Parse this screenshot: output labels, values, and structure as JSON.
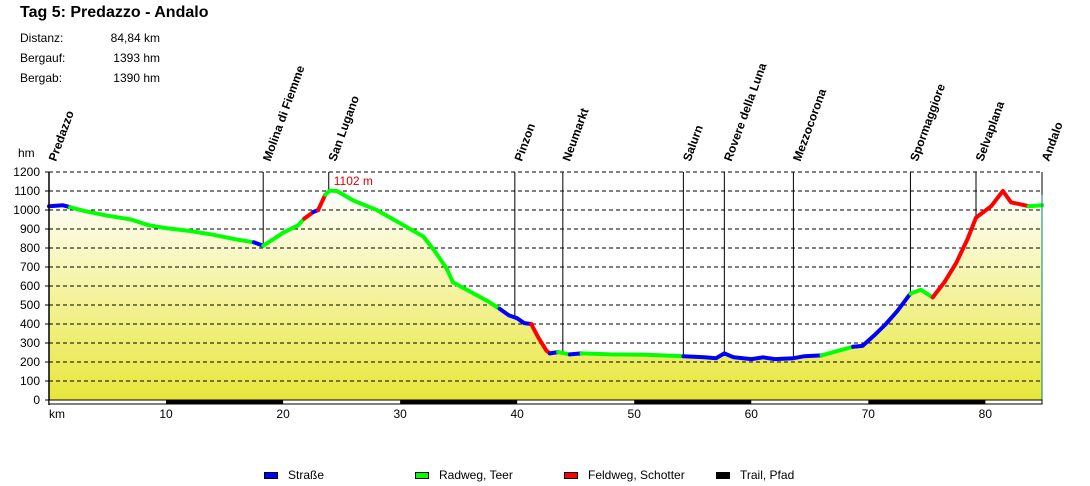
{
  "header": {
    "title": "Tag 5: Predazzo - Andalo",
    "stats": [
      {
        "label": "Distanz:",
        "value": "84,84 km"
      },
      {
        "label": "Bergauf:",
        "value": "1393 hm"
      },
      {
        "label": "Bergab:",
        "value": "1390 hm"
      }
    ]
  },
  "legend": [
    {
      "label": "Straße",
      "color": "#0000ff"
    },
    {
      "label": "Radweg, Teer",
      "color": "#00ff00"
    },
    {
      "label": "Feldweg, Schotter",
      "color": "#ff0000"
    },
    {
      "label": "Trail, Pfad",
      "color": "#000000"
    }
  ],
  "chart_data": {
    "type": "area",
    "title": "Tag 5: Predazzo - Andalo",
    "xlabel": "km",
    "ylabel": "hm",
    "xlim": [
      0,
      84.84
    ],
    "ylim": [
      0,
      1200
    ],
    "x_ticks": [
      10,
      20,
      30,
      40,
      50,
      60,
      70,
      80
    ],
    "y_ticks": [
      0,
      100,
      200,
      300,
      400,
      500,
      600,
      700,
      800,
      900,
      1000,
      1100,
      1200
    ],
    "grid": "horizontal dashed",
    "max_annotation": {
      "label": "1102 m",
      "km": 23.9,
      "hm": 1102
    },
    "waypoints": [
      {
        "name": "Predazzo",
        "km": 0
      },
      {
        "name": "Molina di Fiemme",
        "km": 18.3
      },
      {
        "name": "San Lugano",
        "km": 23.9
      },
      {
        "name": "Pinzon",
        "km": 39.8
      },
      {
        "name": "Neumarkt",
        "km": 43.9
      },
      {
        "name": "Salurn",
        "km": 54.2
      },
      {
        "name": "Rovere della Luna",
        "km": 57.7
      },
      {
        "name": "Mezzocorona",
        "km": 63.6
      },
      {
        "name": "Spormaggiore",
        "km": 73.6
      },
      {
        "name": "Selvaplana",
        "km": 79.2
      },
      {
        "name": "Andalo",
        "km": 84.84
      }
    ],
    "series": [
      {
        "name": "Straße",
        "color": "#0000ff",
        "points": [
          [
            0,
            1020
          ],
          [
            1.2,
            1025
          ],
          [
            1.8,
            1015
          ]
        ]
      },
      {
        "name": "Radweg, Teer",
        "color": "#00ff00",
        "points": [
          [
            1.8,
            1015
          ],
          [
            3,
            995
          ],
          [
            5,
            970
          ],
          [
            7,
            950
          ],
          [
            8.5,
            920
          ],
          [
            10,
            905
          ],
          [
            12,
            890
          ],
          [
            14,
            870
          ],
          [
            16,
            845
          ],
          [
            17.5,
            830
          ]
        ]
      },
      {
        "name": "Straße",
        "color": "#0000ff",
        "points": [
          [
            17.5,
            830
          ],
          [
            18.3,
            812
          ]
        ]
      },
      {
        "name": "Radweg, Teer",
        "color": "#00ff00",
        "points": [
          [
            18.3,
            812
          ],
          [
            19,
            840
          ],
          [
            20,
            880
          ],
          [
            21.3,
            920
          ],
          [
            21.8,
            955
          ]
        ]
      },
      {
        "name": "Feldweg, Schotter",
        "color": "#ff0000",
        "points": [
          [
            21.8,
            955
          ],
          [
            22.6,
            990
          ]
        ]
      },
      {
        "name": "Straße",
        "color": "#0000ff",
        "points": [
          [
            22.6,
            990
          ],
          [
            23,
            1000
          ]
        ]
      },
      {
        "name": "Feldweg, Schotter",
        "color": "#ff0000",
        "points": [
          [
            23,
            1000
          ],
          [
            23.6,
            1080
          ]
        ]
      },
      {
        "name": "Radweg, Teer",
        "color": "#00ff00",
        "points": [
          [
            23.6,
            1080
          ],
          [
            24,
            1102
          ],
          [
            24.6,
            1100
          ],
          [
            26,
            1050
          ],
          [
            28,
            1000
          ],
          [
            30,
            930
          ],
          [
            32,
            860
          ],
          [
            33,
            780
          ],
          [
            34,
            690
          ],
          [
            34.5,
            620
          ],
          [
            36,
            570
          ],
          [
            37.5,
            520
          ],
          [
            38.5,
            480
          ]
        ]
      },
      {
        "name": "Straße",
        "color": "#0000ff",
        "points": [
          [
            38.5,
            480
          ],
          [
            39.3,
            445
          ],
          [
            40,
            430
          ],
          [
            40.6,
            405
          ],
          [
            41.2,
            400
          ]
        ]
      },
      {
        "name": "Feldweg, Schotter",
        "color": "#ff0000",
        "points": [
          [
            41.2,
            400
          ],
          [
            41.8,
            330
          ],
          [
            42.5,
            260
          ],
          [
            42.8,
            245
          ]
        ]
      },
      {
        "name": "Straße",
        "color": "#0000ff",
        "points": [
          [
            42.8,
            245
          ],
          [
            43.5,
            252
          ]
        ]
      },
      {
        "name": "Radweg, Teer",
        "color": "#00ff00",
        "points": [
          [
            43.5,
            252
          ],
          [
            44.5,
            240
          ]
        ]
      },
      {
        "name": "Straße",
        "color": "#0000ff",
        "points": [
          [
            44.5,
            240
          ],
          [
            45.5,
            245
          ]
        ]
      },
      {
        "name": "Radweg, Teer",
        "color": "#00ff00",
        "points": [
          [
            45.5,
            245
          ],
          [
            48,
            240
          ],
          [
            51,
            238
          ],
          [
            54.2,
            230
          ]
        ]
      },
      {
        "name": "Straße",
        "color": "#0000ff",
        "points": [
          [
            54.2,
            230
          ],
          [
            56,
            225
          ],
          [
            57,
            220
          ],
          [
            57.7,
            245
          ],
          [
            58.5,
            225
          ],
          [
            60,
            215
          ],
          [
            61,
            225
          ],
          [
            62,
            215
          ],
          [
            63.6,
            220
          ],
          [
            64.5,
            230
          ],
          [
            66,
            235
          ]
        ]
      },
      {
        "name": "Radweg, Teer",
        "color": "#00ff00",
        "points": [
          [
            66,
            235
          ],
          [
            67.5,
            260
          ],
          [
            68.7,
            280
          ]
        ]
      },
      {
        "name": "Straße",
        "color": "#0000ff",
        "points": [
          [
            68.7,
            280
          ],
          [
            69.5,
            285
          ],
          [
            70.5,
            340
          ],
          [
            71.5,
            400
          ],
          [
            72.5,
            470
          ],
          [
            73.6,
            560
          ]
        ]
      },
      {
        "name": "Radweg, Teer",
        "color": "#00ff00",
        "points": [
          [
            73.6,
            560
          ],
          [
            74.5,
            580
          ],
          [
            75.5,
            540
          ]
        ]
      },
      {
        "name": "Feldweg, Schotter",
        "color": "#ff0000",
        "points": [
          [
            75.5,
            540
          ],
          [
            76.5,
            620
          ],
          [
            77.5,
            720
          ],
          [
            78.5,
            850
          ],
          [
            79.2,
            960
          ],
          [
            80.5,
            1020
          ],
          [
            81.5,
            1100
          ],
          [
            82.2,
            1040
          ],
          [
            83,
            1030
          ],
          [
            83.7,
            1020
          ]
        ]
      },
      {
        "name": "Radweg, Teer",
        "color": "#00ff00",
        "points": [
          [
            83.7,
            1020
          ],
          [
            84.84,
            1025
          ]
        ]
      }
    ]
  }
}
